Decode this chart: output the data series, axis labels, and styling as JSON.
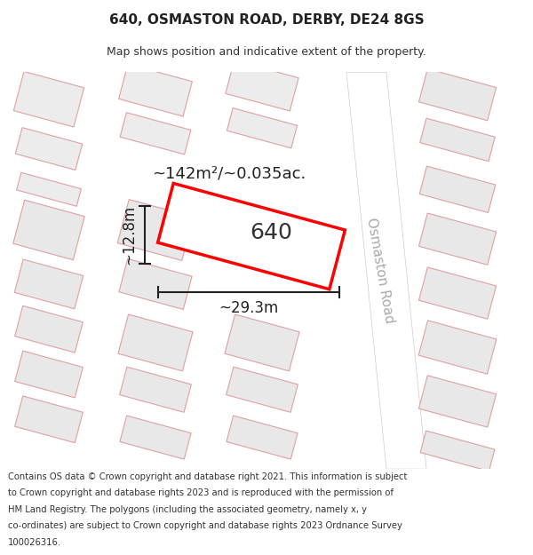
{
  "title": "640, OSMASTON ROAD, DERBY, DE24 8GS",
  "subtitle": "Map shows position and indicative extent of the property.",
  "footer_lines": [
    "Contains OS data © Crown copyright and database right 2021. This information is subject",
    "to Crown copyright and database rights 2023 and is reproduced with the permission of",
    "HM Land Registry. The polygons (including the associated geometry, namely x, y",
    "co-ordinates) are subject to Crown copyright and database rights 2023 Ordnance Survey",
    "100026316."
  ],
  "area_label": "~142m²/~0.035ac.",
  "width_label": "~29.3m",
  "height_label": "~12.8m",
  "plot_label": "640",
  "map_bg": "#ffffff",
  "road_label": "Osmaston Road",
  "road_label_color": "#aaaaaa",
  "dim_line_color": "#222222",
  "title_fontsize": 11,
  "subtitle_fontsize": 9,
  "footer_fontsize": 7.2,
  "label_fontsize": 13,
  "plot_label_fontsize": 18,
  "road_label_fontsize": 11
}
